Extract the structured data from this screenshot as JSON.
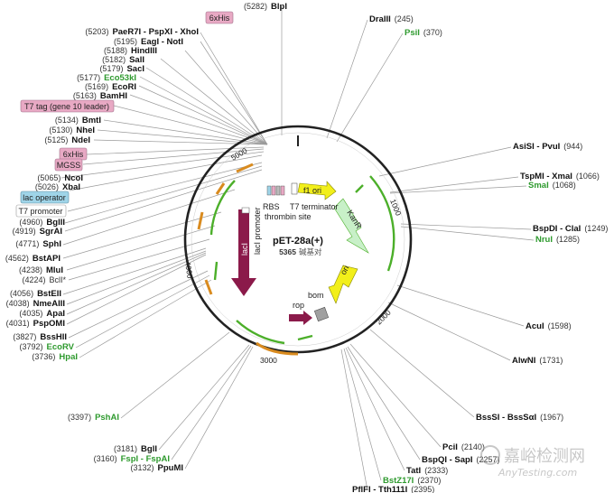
{
  "plasmid": {
    "name": "pET-28a(+)",
    "length": "5365",
    "unit": "碱基对"
  },
  "ticks": [
    "1000",
    "2000",
    "3000",
    "4000",
    "5000"
  ],
  "features": {
    "f1_ori": "f1 ori",
    "kanR": "KanR",
    "ori": "ori",
    "bom": "bom",
    "rop": "rop",
    "lacI": "lacI",
    "lacI_promoter": "lacI promoter",
    "rbs": "RBS",
    "thrombin": "thrombin site",
    "t7_terminator": "T7 terminator"
  },
  "tags": {
    "his_top": "6xHis",
    "t7tag": "T7 tag (gene 10 leader)",
    "his_mid": "6xHis",
    "mgss": "MGSS",
    "lac_operator": "lac operator",
    "t7_promoter": "T7 promoter"
  },
  "sites": {
    "blpi": {
      "pos": "(5282)",
      "name": "BlpI"
    },
    "paer7i": {
      "pos": "(5203)",
      "name": "PaeR7I - PspXI - XhoI"
    },
    "eagi": {
      "pos": "(5195)",
      "name": "EagI - NotI"
    },
    "hindiii": {
      "pos": "(5188)",
      "name": "HindIII"
    },
    "sali": {
      "pos": "(5182)",
      "name": "SalI"
    },
    "saci": {
      "pos": "(5179)",
      "name": "SacI"
    },
    "eco53ki": {
      "pos": "(5177)",
      "name": "Eco53kI"
    },
    "ecori": {
      "pos": "(5169)",
      "name": "EcoRI"
    },
    "bamhi": {
      "pos": "(5163)",
      "name": "BamHI"
    },
    "bmti": {
      "pos": "(5134)",
      "name": "BmtI"
    },
    "nhei": {
      "pos": "(5130)",
      "name": "NheI"
    },
    "ndei": {
      "pos": "(5125)",
      "name": "NdeI"
    },
    "ncoi": {
      "pos": "(5065)",
      "name": "NcoI"
    },
    "xbai": {
      "pos": "(5026)",
      "name": "XbaI"
    },
    "bglii": {
      "pos": "(4960)",
      "name": "BglII"
    },
    "sgrai": {
      "pos": "(4919)",
      "name": "SgrAI"
    },
    "sphi": {
      "pos": "(4771)",
      "name": "SphI"
    },
    "bstapi": {
      "pos": "(4562)",
      "name": "BstAPI"
    },
    "mlui": {
      "pos": "(4238)",
      "name": "MluI"
    },
    "bcli": {
      "pos": "(4224)",
      "name": "BclI*"
    },
    "bsteii": {
      "pos": "(4056)",
      "name": "BstEII"
    },
    "nmeaiii": {
      "pos": "(4038)",
      "name": "NmeAIII"
    },
    "apai": {
      "pos": "(4035)",
      "name": "ApaI"
    },
    "pspomi": {
      "pos": "(4031)",
      "name": "PspOMI"
    },
    "bsshii": {
      "pos": "(3827)",
      "name": "BssHII"
    },
    "ecorv": {
      "pos": "(3792)",
      "name": "EcoRV"
    },
    "hpai": {
      "pos": "(3736)",
      "name": "HpaI"
    },
    "pshai": {
      "pos": "(3397)",
      "name": "PshAI"
    },
    "bgli": {
      "pos": "(3181)",
      "name": "BglI"
    },
    "fspi": {
      "pos": "(3160)",
      "name": "FspI - FspAI"
    },
    "ppumi": {
      "pos": "(3132)",
      "name": "PpuMI"
    },
    "draiii": {
      "pos": "(245)",
      "name": "DraIII"
    },
    "psii": {
      "pos": "(370)",
      "name": "PsiI"
    },
    "asisi": {
      "pos": "(944)",
      "name": "AsiSI - PvuI"
    },
    "tspmi": {
      "pos": "(1066)",
      "name": "TspMI - XmaI"
    },
    "smai": {
      "pos": "(1068)",
      "name": "SmaI"
    },
    "bspdi": {
      "pos": "(1249)",
      "name": "BspDI - ClaI"
    },
    "nrui": {
      "pos": "(1285)",
      "name": "NruI"
    },
    "acui": {
      "pos": "(1598)",
      "name": "AcuI"
    },
    "alwni": {
      "pos": "(1731)",
      "name": "AlwNI"
    },
    "bsssi": {
      "pos": "(1967)",
      "name": "BssSI - BssSαI"
    },
    "pcii": {
      "pos": "(2140)",
      "name": "PciI"
    },
    "bspqi": {
      "pos": "(2257)",
      "name": "BspQI - SapI"
    },
    "tati": {
      "pos": "(2333)",
      "name": "TatI"
    },
    "bstz17i": {
      "pos": "(2370)",
      "name": "BstZ17I"
    },
    "pfli": {
      "pos": "(2395)",
      "name": "PflFI - Tth111I"
    }
  },
  "watermark": {
    "cn": "嘉峪检测网",
    "en": "AnyTesting.com"
  },
  "colors": {
    "green_feature": "#4caf2a",
    "orange_feature": "#d98b1f",
    "magenta_feature": "#8b1a4a",
    "yellow_feature": "#f2ef1a",
    "mint_feature": "#c8f0c8",
    "tag_pink": "#e8a9c4",
    "tag_blue": "#9fd4e8",
    "site_green": "#2e9a2e"
  }
}
